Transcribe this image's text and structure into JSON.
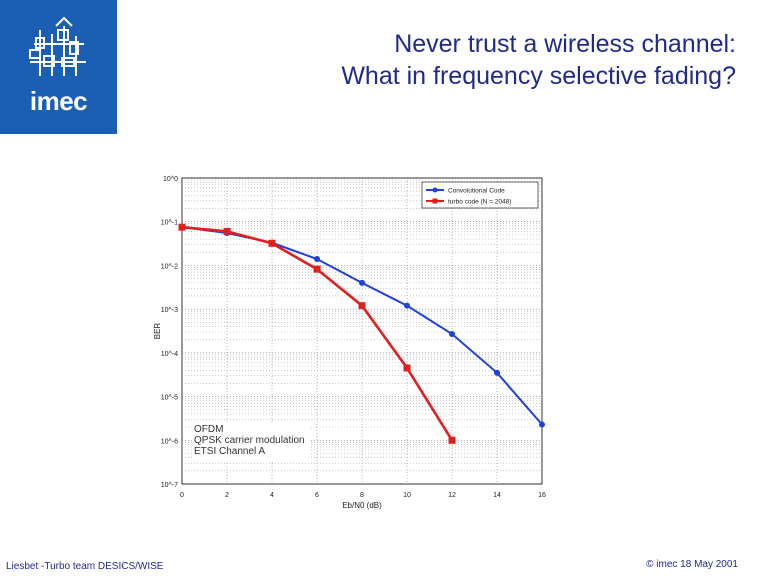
{
  "slide": {
    "title_line1": "Never trust a wireless channel:",
    "title_line2": "What in frequency selective fading?",
    "logo_text": "imec",
    "footer_left": "Liesbet -Turbo team DESICS/WISE",
    "footer_right": "© imec 18 May 2001"
  },
  "colors": {
    "logo_bg": "#1a5fb4",
    "title": "#1f2a8a",
    "series_conv": "#1f3fe0",
    "series_turbo": "#e01f1f"
  },
  "chart_data": {
    "type": "line",
    "xlabel": "Eb/N0 (dB)",
    "ylabel": "BER",
    "xlim": [
      0,
      16
    ],
    "ylim_exp": [
      -7,
      0
    ],
    "yscale": "log",
    "grid": true,
    "legend_position": "top-right",
    "x_ticks": [
      "0",
      "2",
      "4",
      "6",
      "8",
      "10",
      "12",
      "14",
      "16"
    ],
    "y_ticks": [
      "10^0",
      "10^-1",
      "10^-2",
      "10^-3",
      "10^-4",
      "10^-5",
      "10^-6",
      "10^-7"
    ],
    "annotations": [
      "OFDM",
      "QPSK carrier modulation",
      "ETSI Channel A"
    ],
    "series": [
      {
        "name": "Convolutional Code",
        "x": [
          0,
          2,
          4,
          6,
          8,
          10,
          12,
          14,
          16
        ],
        "y": [
          0.075,
          0.055,
          0.033,
          0.014,
          0.004,
          0.0012,
          0.00027,
          3.5e-05,
          2.3e-06
        ]
      },
      {
        "name": "turbo code (N = 2048)",
        "x": [
          0,
          2,
          4,
          6,
          8,
          10,
          12
        ],
        "y": [
          0.075,
          0.06,
          0.032,
          0.0082,
          0.0012,
          4.5e-05,
          1e-06
        ]
      }
    ]
  }
}
